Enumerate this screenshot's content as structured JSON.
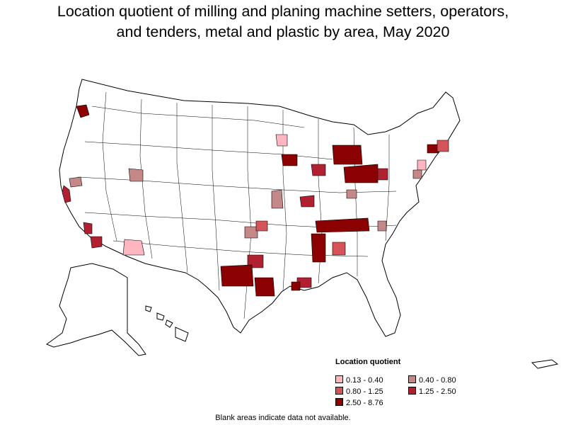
{
  "title": {
    "line1": "Location quotient of milling and planing machine setters, operators,",
    "line2": "and tenders, metal and plastic by area, May 2020"
  },
  "legend": {
    "title": "Location quotient",
    "items": [
      {
        "label": "0.13 - 0.40",
        "color": "#ffb6c1"
      },
      {
        "label": "0.40 - 0.80",
        "color": "#c48888"
      },
      {
        "label": "0.80 - 1.25",
        "color": "#d4545a"
      },
      {
        "label": "1.25 - 2.50",
        "color": "#b02030"
      },
      {
        "label": "2.50 - 8.76",
        "color": "#8b0000"
      }
    ]
  },
  "footnote": "Blank areas indicate data not available.",
  "colors": {
    "border": "#000000",
    "blank_area": "#ffffff"
  }
}
